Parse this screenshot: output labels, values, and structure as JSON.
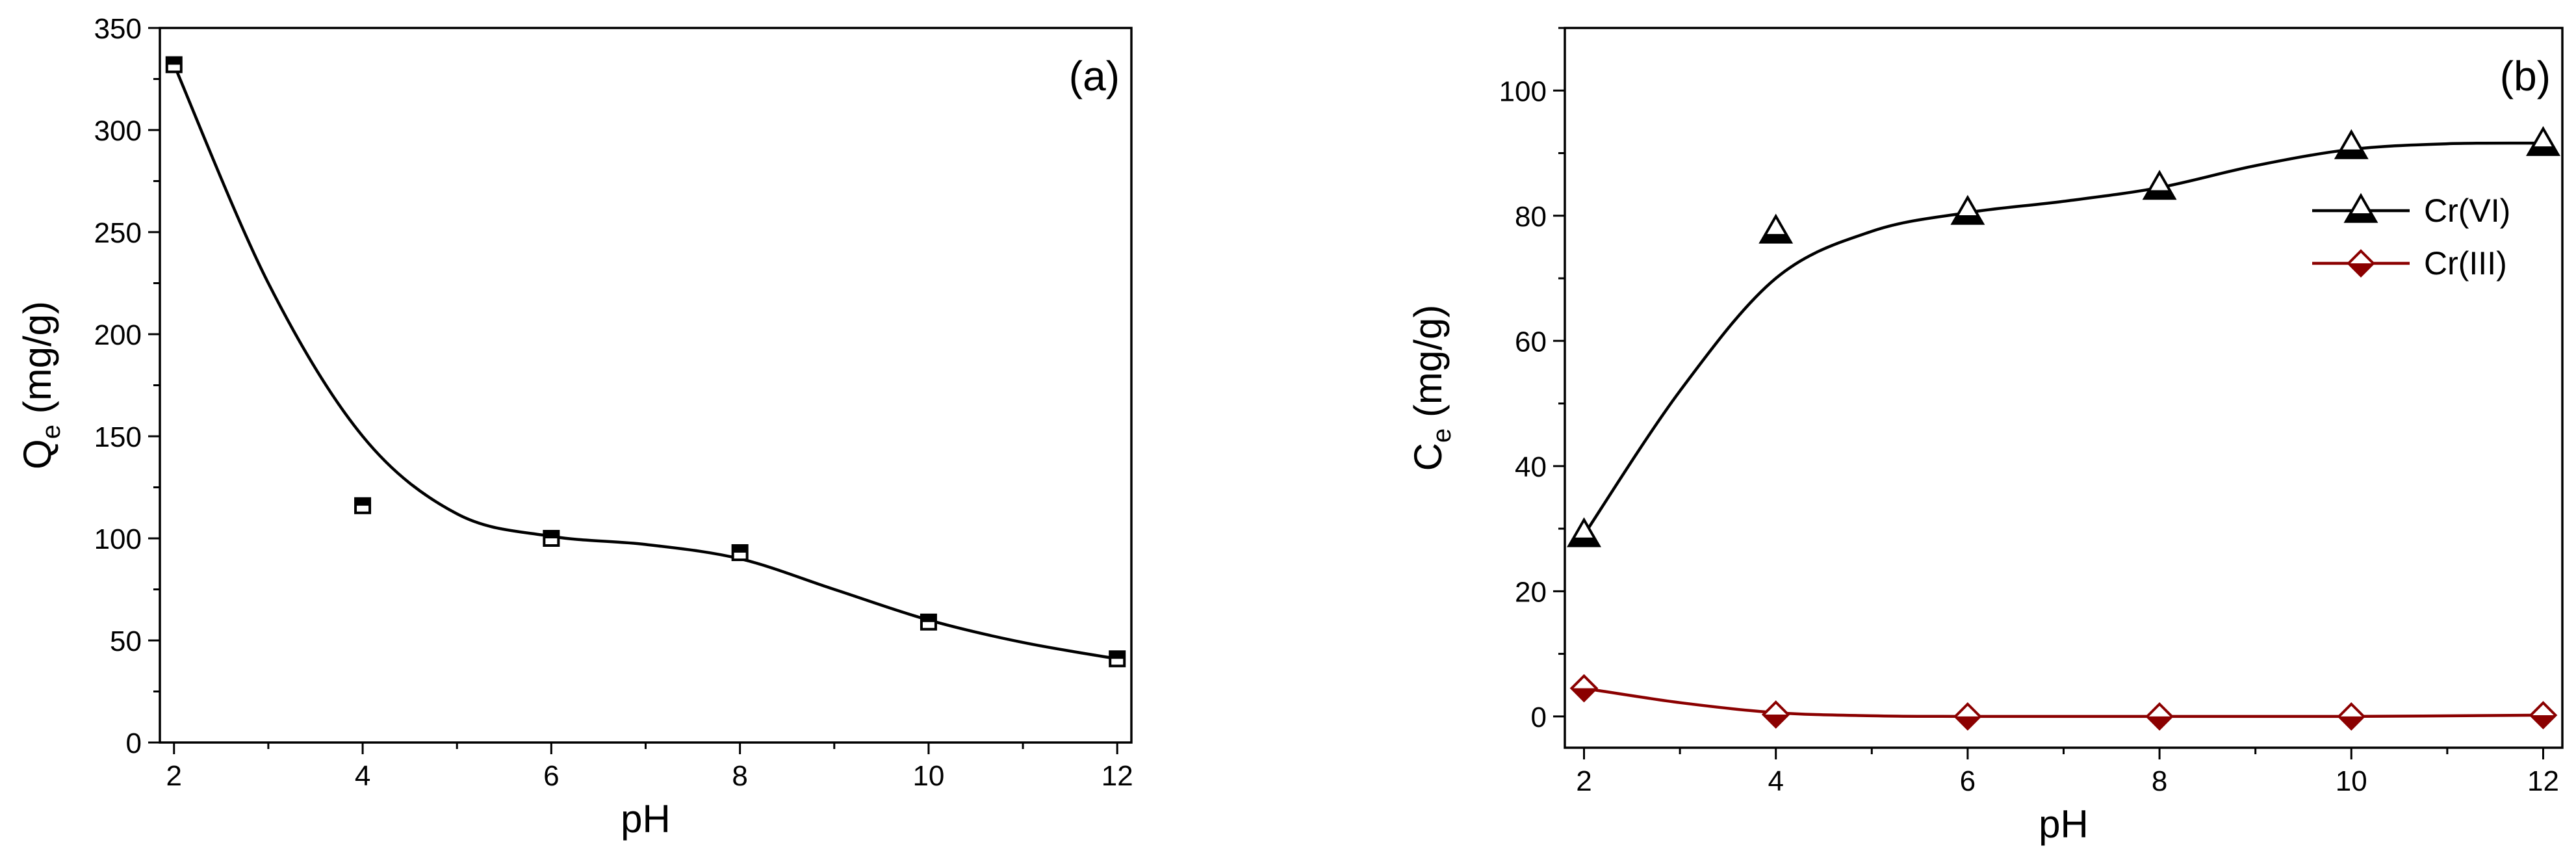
{
  "chart_data": [
    {
      "panel_label": "(a)",
      "type": "scatter",
      "xlabel": "pH",
      "ylabel_main": "Q",
      "ylabel_sub": "e",
      "ylabel_unit": " (mg/g)",
      "xlim": [
        1.85,
        12.15
      ],
      "ylim": [
        0,
        350
      ],
      "xticks": [
        2,
        4,
        6,
        8,
        10,
        12
      ],
      "yticks": [
        0,
        50,
        100,
        150,
        200,
        250,
        300,
        350
      ],
      "series": [
        {
          "name": "Qe",
          "marker": "half-filled-square",
          "color": "#000000",
          "x": [
            2,
            4,
            6,
            8,
            10,
            12
          ],
          "y": [
            332,
            116,
            100,
            93,
            59,
            41
          ],
          "fit": [
            [
              2,
              332
            ],
            [
              3,
              225
            ],
            [
              4,
              150
            ],
            [
              5,
              112
            ],
            [
              6,
              101
            ],
            [
              7,
              97
            ],
            [
              8,
              90
            ],
            [
              9,
              75
            ],
            [
              10,
              60
            ],
            [
              11,
              49
            ],
            [
              12,
              41
            ]
          ]
        }
      ]
    },
    {
      "panel_label": "(b)",
      "type": "line",
      "xlabel": "pH",
      "ylabel_main": "C",
      "ylabel_sub": "e",
      "ylabel_unit": " (mg/g)",
      "xlim": [
        1.8,
        12.2
      ],
      "ylim": [
        -5,
        110
      ],
      "xticks": [
        2,
        4,
        6,
        8,
        10,
        12
      ],
      "yticks": [
        0,
        20,
        40,
        60,
        80,
        100
      ],
      "legend_position": "top-right",
      "series": [
        {
          "name": "Cr(VI)",
          "marker": "half-filled-triangle",
          "color": "#000000",
          "x": [
            2,
            4,
            6,
            8,
            10,
            12
          ],
          "y": [
            29,
            77.5,
            80.5,
            84.5,
            91,
            91.5
          ],
          "fit": [
            [
              2,
              29
            ],
            [
              3,
              52
            ],
            [
              4,
              70
            ],
            [
              5,
              77.5
            ],
            [
              6,
              80.5
            ],
            [
              7,
              82.3
            ],
            [
              8,
              84.5
            ],
            [
              9,
              88
            ],
            [
              10,
              90.6
            ],
            [
              11,
              91.5
            ],
            [
              12,
              91.6
            ]
          ]
        },
        {
          "name": "Cr(III)",
          "marker": "half-filled-diamond",
          "color": "#8b0000",
          "x": [
            2,
            4,
            6,
            8,
            10,
            12
          ],
          "y": [
            4.5,
            0.3,
            0,
            0,
            0,
            0.2
          ],
          "fit": [
            [
              2,
              4.5
            ],
            [
              3,
              2.2
            ],
            [
              4,
              0.6
            ],
            [
              5,
              0.1
            ],
            [
              6,
              0
            ],
            [
              8,
              0
            ],
            [
              10,
              0
            ],
            [
              12,
              0.2
            ]
          ]
        }
      ]
    }
  ]
}
